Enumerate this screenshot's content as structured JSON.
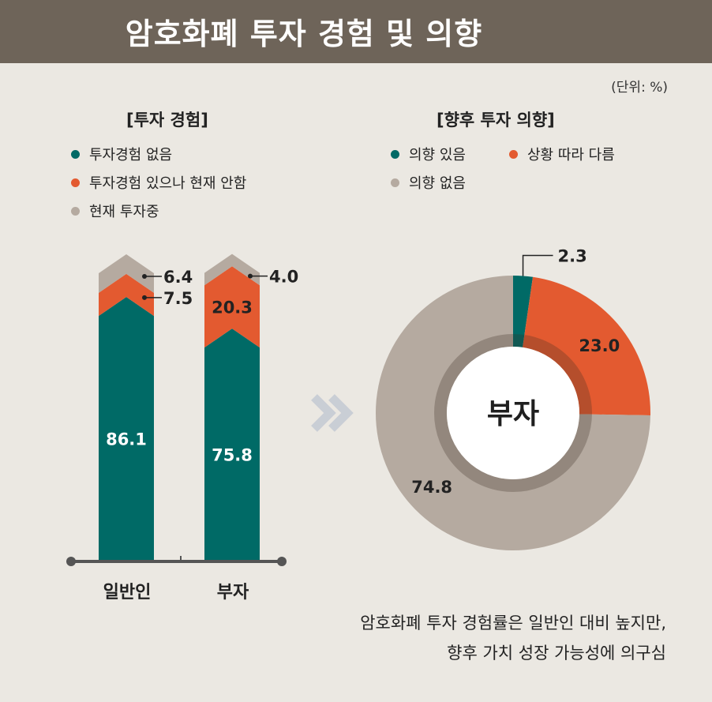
{
  "header": {
    "title": "암호화폐 투자 경험 및 의향"
  },
  "unit_label": "(단위: %)",
  "caption": {
    "line1": "암호화폐 투자 경험률은 일반인 대비 높지만,",
    "line2": "향후 가치 성장 가능성에 의구심"
  },
  "colors": {
    "teal": "#006a66",
    "orange": "#e35a30",
    "gray": "#b5aaa0",
    "header": "#6e6459",
    "background": "#ebe8e2"
  },
  "chart_data": [
    {
      "type": "bar",
      "stacked": true,
      "title": "[투자 경험]",
      "categories": [
        "일반인",
        "부자"
      ],
      "series": [
        {
          "name": "투자경험 없음",
          "color": "#006a66",
          "values": [
            86.1,
            75.8
          ]
        },
        {
          "name": "투자경험 있으나 현재 안함",
          "color": "#e35a30",
          "values": [
            7.5,
            20.3
          ]
        },
        {
          "name": "현재 투자중",
          "color": "#b5aaa0",
          "values": [
            6.4,
            4.0
          ]
        }
      ],
      "data_labels": [
        [
          "86.1",
          "75.8"
        ],
        [
          "7.5",
          "20.3"
        ],
        [
          "6.4",
          "4.0"
        ]
      ],
      "ylim": [
        0,
        100
      ],
      "grid": false
    },
    {
      "type": "pie",
      "donut": true,
      "title": "[향후 투자 의향]",
      "center_label": "부자",
      "slices": [
        {
          "name": "의향 있음",
          "value": 2.3,
          "label": "2.3",
          "color": "#006a66"
        },
        {
          "name": "상황 따라 다름",
          "value": 23.0,
          "label": "23.0",
          "color": "#e35a30"
        },
        {
          "name": "의향 없음",
          "value": 74.8,
          "label": "74.8",
          "color": "#b5aaa0"
        }
      ]
    }
  ]
}
